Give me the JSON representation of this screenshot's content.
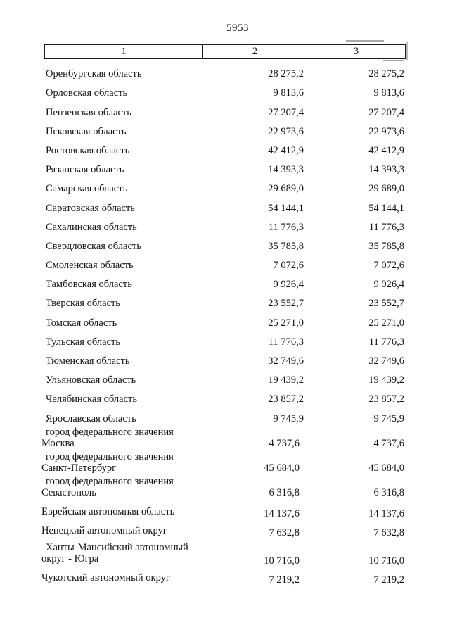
{
  "page": {
    "number": "5953"
  },
  "table": {
    "columns": [
      "1",
      "2",
      "3"
    ],
    "rows": [
      {
        "name": [
          "Оренбургская область"
        ],
        "col2": "28 275,2",
        "col3": "28 275,2"
      },
      {
        "name": [
          "Орловская область"
        ],
        "col2": "9 813,6",
        "col3": "9 813,6"
      },
      {
        "name": [
          "Пензенская область"
        ],
        "col2": "27 207,4",
        "col3": "27 207,4"
      },
      {
        "name": [
          "Псковская область"
        ],
        "col2": "22 973,6",
        "col3": "22 973,6"
      },
      {
        "name": [
          "Ростовская область"
        ],
        "col2": "42 412,9",
        "col3": "42 412,9"
      },
      {
        "name": [
          "Рязанская область"
        ],
        "col2": "14 393,3",
        "col3": "14 393,3"
      },
      {
        "name": [
          "Самарская область"
        ],
        "col2": "29 689,0",
        "col3": "29 689,0"
      },
      {
        "name": [
          "Саратовская область"
        ],
        "col2": "54 144,1",
        "col3": "54 144,1"
      },
      {
        "name": [
          "Сахалинская область"
        ],
        "col2": "11 776,3",
        "col3": "11 776,3"
      },
      {
        "name": [
          "Свердловская область"
        ],
        "col2": "35 785,8",
        "col3": "35 785,8"
      },
      {
        "name": [
          "Смоленская область"
        ],
        "col2": "7 072,6",
        "col3": "7 072,6"
      },
      {
        "name": [
          "Тамбовская область"
        ],
        "col2": "9 926,4",
        "col3": "9 926,4"
      },
      {
        "name": [
          "Тверская область"
        ],
        "col2": "23 552,7",
        "col3": "23 552,7"
      },
      {
        "name": [
          "Томская область"
        ],
        "col2": "25 271,0",
        "col3": "25 271,0"
      },
      {
        "name": [
          "Тульская область"
        ],
        "col2": "11 776,3",
        "col3": "11 776,3"
      },
      {
        "name": [
          "Тюменская область"
        ],
        "col2": "32 749,6",
        "col3": "32 749,6"
      },
      {
        "name": [
          "Ульяновская область"
        ],
        "col2": "19 439,2",
        "col3": "19 439,2"
      },
      {
        "name": [
          "Челябинская область"
        ],
        "col2": "23 857,2",
        "col3": "23 857,2"
      },
      {
        "name": [
          "Ярославская область"
        ],
        "col2": "9 745,9",
        "col3": "9 745,9"
      },
      {
        "name": [
          "город федерального значения",
          "Москва"
        ],
        "col2": "4 737,6",
        "col3": "4 737,6"
      },
      {
        "name": [
          "город федерального значения",
          "Санкт-Петербург"
        ],
        "col2": "45 684,0",
        "col3": "45 684,0"
      },
      {
        "name": [
          "город федерального значения",
          "Севастополь"
        ],
        "col2": "6 316,8",
        "col3": "6 316,8"
      },
      {
        "name": [
          "Еврейская автономная область"
        ],
        "col2": "14 137,6",
        "col3": "14 137,6"
      },
      {
        "name": [
          "Ненецкий автономный округ"
        ],
        "col2": "7 632,8",
        "col3": "7 632,8"
      },
      {
        "name": [
          "Ханты-Мансийский автономный",
          "округ - Югра"
        ],
        "col2": "10 716,0",
        "col3": "10 716,0"
      },
      {
        "name": [
          "Чукотский автономный округ"
        ],
        "col2": "7 219,2",
        "col3": "7 219,2"
      }
    ]
  }
}
